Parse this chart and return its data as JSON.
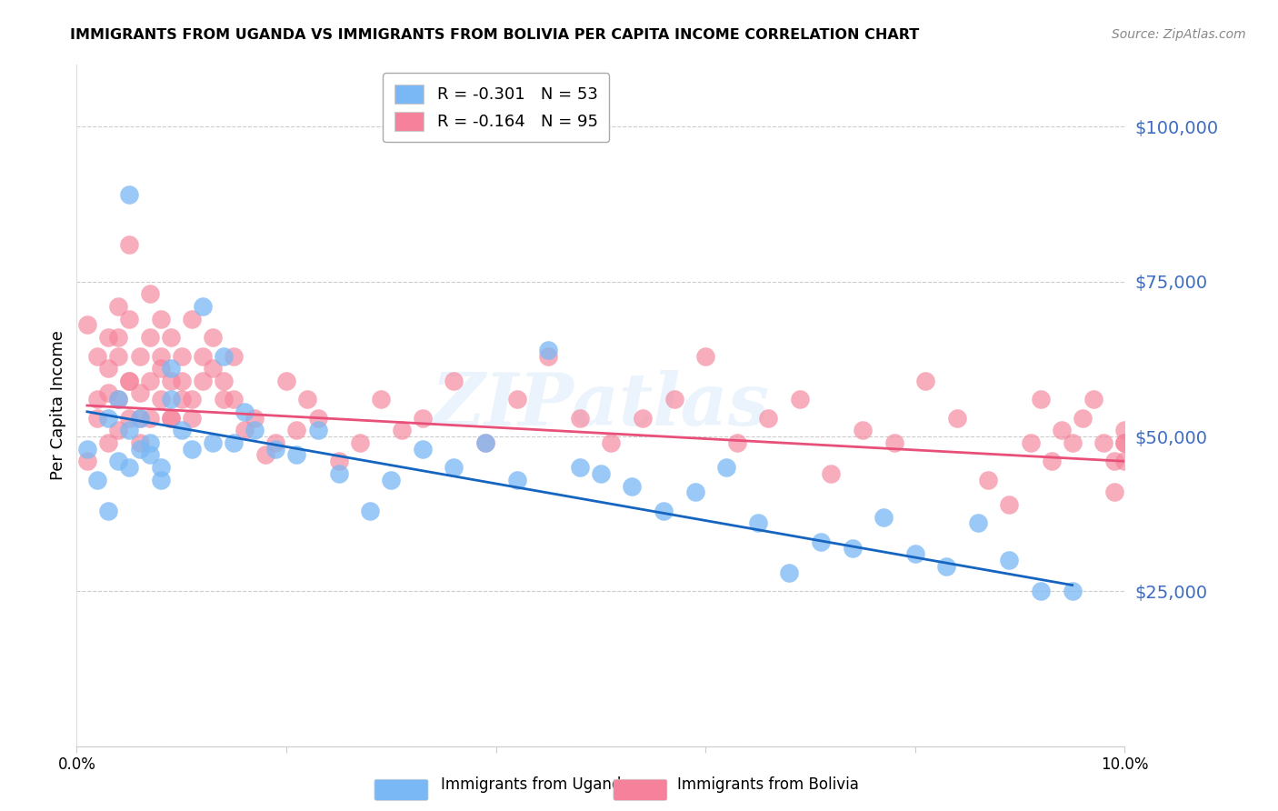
{
  "title": "IMMIGRANTS FROM UGANDA VS IMMIGRANTS FROM BOLIVIA PER CAPITA INCOME CORRELATION CHART",
  "source": "Source: ZipAtlas.com",
  "ylabel": "Per Capita Income",
  "xlim": [
    0.0,
    0.1
  ],
  "ylim": [
    0,
    110000
  ],
  "yticks": [
    0,
    25000,
    50000,
    75000,
    100000
  ],
  "ytick_labels": [
    "",
    "$25,000",
    "$50,000",
    "$75,000",
    "$100,000"
  ],
  "xticks": [
    0.0,
    0.02,
    0.04,
    0.06,
    0.08,
    0.1
  ],
  "xtick_labels": [
    "0.0%",
    "",
    "",
    "",
    "",
    "10.0%"
  ],
  "legend1_label": "R = -0.301   N = 53",
  "legend2_label": "R = -0.164   N = 95",
  "color_uganda": "#7ab8f5",
  "color_bolivia": "#f5829a",
  "color_line_uganda": "#1565c0",
  "color_line_bolivia": "#e8507a",
  "color_ytick": "#3d6cc0",
  "color_grid": "#cccccc",
  "watermark": "ZIPatlas",
  "background_color": "#ffffff",
  "uganda_x": [
    0.001,
    0.002,
    0.003,
    0.003,
    0.004,
    0.004,
    0.005,
    0.005,
    0.005,
    0.006,
    0.006,
    0.007,
    0.007,
    0.008,
    0.008,
    0.009,
    0.009,
    0.01,
    0.011,
    0.012,
    0.013,
    0.014,
    0.015,
    0.016,
    0.017,
    0.019,
    0.021,
    0.023,
    0.025,
    0.028,
    0.03,
    0.033,
    0.036,
    0.039,
    0.042,
    0.045,
    0.048,
    0.05,
    0.053,
    0.056,
    0.059,
    0.062,
    0.065,
    0.068,
    0.071,
    0.074,
    0.077,
    0.08,
    0.083,
    0.086,
    0.089,
    0.092,
    0.095
  ],
  "uganda_y": [
    48000,
    43000,
    53000,
    38000,
    56000,
    46000,
    51000,
    45000,
    89000,
    48000,
    53000,
    47000,
    49000,
    45000,
    43000,
    56000,
    61000,
    51000,
    48000,
    71000,
    49000,
    63000,
    49000,
    54000,
    51000,
    48000,
    47000,
    51000,
    44000,
    38000,
    43000,
    48000,
    45000,
    49000,
    43000,
    64000,
    45000,
    44000,
    42000,
    38000,
    41000,
    45000,
    36000,
    28000,
    33000,
    32000,
    37000,
    31000,
    29000,
    36000,
    30000,
    25000,
    25000
  ],
  "bolivia_x": [
    0.001,
    0.001,
    0.002,
    0.002,
    0.002,
    0.003,
    0.003,
    0.003,
    0.003,
    0.004,
    0.004,
    0.004,
    0.004,
    0.004,
    0.005,
    0.005,
    0.005,
    0.005,
    0.005,
    0.006,
    0.006,
    0.006,
    0.006,
    0.007,
    0.007,
    0.007,
    0.007,
    0.008,
    0.008,
    0.008,
    0.008,
    0.009,
    0.009,
    0.009,
    0.009,
    0.01,
    0.01,
    0.01,
    0.011,
    0.011,
    0.011,
    0.012,
    0.012,
    0.013,
    0.013,
    0.014,
    0.014,
    0.015,
    0.015,
    0.016,
    0.017,
    0.018,
    0.019,
    0.02,
    0.021,
    0.022,
    0.023,
    0.025,
    0.027,
    0.029,
    0.031,
    0.033,
    0.036,
    0.039,
    0.042,
    0.045,
    0.048,
    0.051,
    0.054,
    0.057,
    0.06,
    0.063,
    0.066,
    0.069,
    0.072,
    0.075,
    0.078,
    0.081,
    0.084,
    0.087,
    0.089,
    0.091,
    0.092,
    0.093,
    0.094,
    0.095,
    0.096,
    0.097,
    0.098,
    0.099,
    0.099,
    0.1,
    0.1,
    0.1,
    0.1
  ],
  "bolivia_y": [
    46000,
    68000,
    63000,
    56000,
    53000,
    66000,
    61000,
    57000,
    49000,
    71000,
    66000,
    56000,
    51000,
    63000,
    59000,
    53000,
    81000,
    69000,
    59000,
    63000,
    57000,
    53000,
    49000,
    73000,
    66000,
    59000,
    53000,
    69000,
    63000,
    56000,
    61000,
    53000,
    66000,
    59000,
    53000,
    56000,
    63000,
    59000,
    56000,
    53000,
    69000,
    59000,
    63000,
    66000,
    61000,
    59000,
    56000,
    63000,
    56000,
    51000,
    53000,
    47000,
    49000,
    59000,
    51000,
    56000,
    53000,
    46000,
    49000,
    56000,
    51000,
    53000,
    59000,
    49000,
    56000,
    63000,
    53000,
    49000,
    53000,
    56000,
    63000,
    49000,
    53000,
    56000,
    44000,
    51000,
    49000,
    59000,
    53000,
    43000,
    39000,
    49000,
    56000,
    46000,
    51000,
    49000,
    53000,
    56000,
    49000,
    46000,
    41000,
    49000,
    46000,
    51000,
    49000
  ],
  "uganda_line_x": [
    0.001,
    0.095
  ],
  "uganda_line_y": [
    54000,
    26000
  ],
  "bolivia_line_x": [
    0.001,
    0.1
  ],
  "bolivia_line_y": [
    55000,
    46000
  ]
}
